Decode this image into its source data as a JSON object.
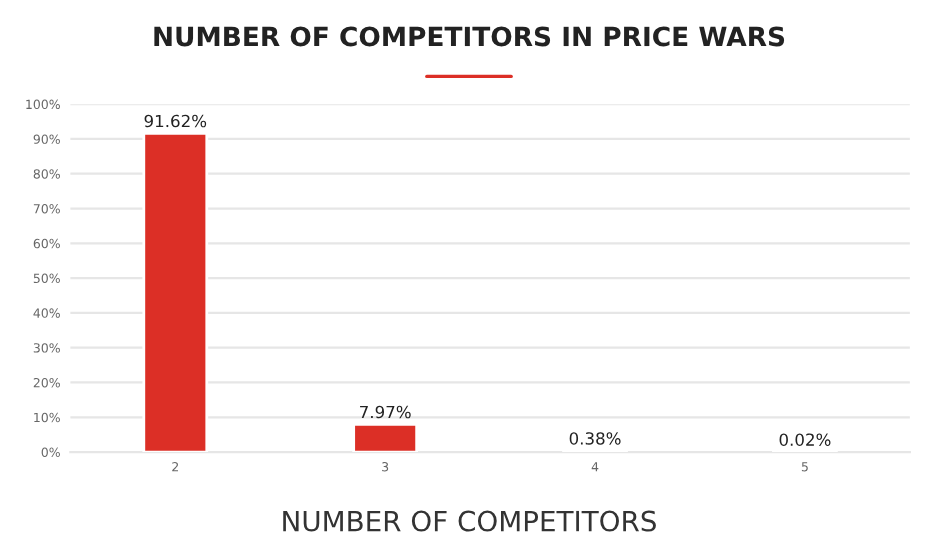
{
  "chart_data": {
    "type": "bar",
    "title": "NUMBER OF COMPETITORS IN PRICE WARS",
    "xlabel": "NUMBER OF COMPETITORS",
    "categories": [
      "2",
      "3",
      "4",
      "5"
    ],
    "values": [
      91.62,
      7.97,
      0.38,
      0.02
    ],
    "value_labels": [
      "91.62%",
      "7.97%",
      "0.38%",
      "0.02%"
    ],
    "color": "#dc2f26",
    "ylim": [
      0,
      100
    ],
    "yticks": [
      {
        "value": 0,
        "label": "0%"
      },
      {
        "value": 10,
        "label": "10%"
      },
      {
        "value": 20,
        "label": "20%"
      },
      {
        "value": 30,
        "label": "30%"
      },
      {
        "value": 40,
        "label": "40%"
      },
      {
        "value": 50,
        "label": "50%"
      },
      {
        "value": 60,
        "label": "60%"
      },
      {
        "value": 70,
        "label": "70%"
      },
      {
        "value": 80,
        "label": "80%"
      },
      {
        "value": 90,
        "label": "90%"
      },
      {
        "value": 100,
        "label": "100%"
      }
    ],
    "grid": "y"
  }
}
